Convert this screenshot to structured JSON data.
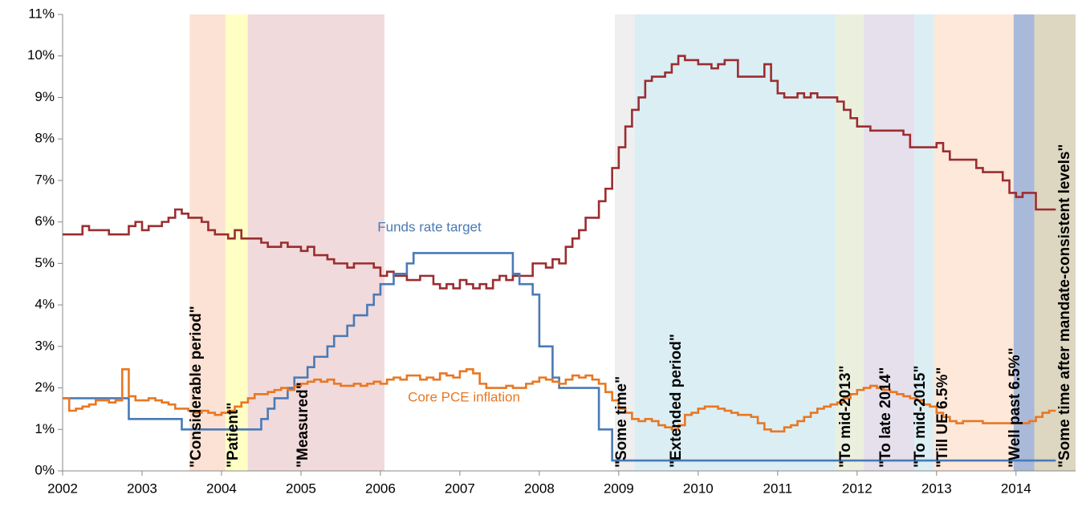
{
  "chart_data": {
    "type": "step-line",
    "xlim": [
      2002,
      2014.75
    ],
    "ylim": [
      0,
      11
    ],
    "xticks": [
      2002,
      2003,
      2004,
      2005,
      2006,
      2007,
      2008,
      2009,
      2010,
      2011,
      2012,
      2013,
      2014
    ],
    "yticks": [
      {
        "value": 0,
        "label": "0%"
      },
      {
        "value": 1,
        "label": "1%"
      },
      {
        "value": 2,
        "label": "2%"
      },
      {
        "value": 3,
        "label": "3%"
      },
      {
        "value": 4,
        "label": "4%"
      },
      {
        "value": 5,
        "label": "5%"
      },
      {
        "value": 6,
        "label": "6%"
      },
      {
        "value": 7,
        "label": "7%"
      },
      {
        "value": 8,
        "label": "8%"
      },
      {
        "value": 9,
        "label": "9%"
      },
      {
        "value": 10,
        "label": "10%"
      },
      {
        "value": 11,
        "label": "11%"
      }
    ],
    "grid": false,
    "shaded_periods": [
      {
        "label": "\"Considerable period\"",
        "start": 2003.6,
        "end": 2004.05,
        "color": "#fbe2d4"
      },
      {
        "label": "\"Patient\"",
        "start": 2004.05,
        "end": 2004.33,
        "color": "#ffffc4"
      },
      {
        "label": "\"Measured\"",
        "start": 2004.33,
        "end": 2006.05,
        "color": "#f1dadb"
      },
      {
        "label": "\"Some time\"",
        "start": 2008.95,
        "end": 2009.2,
        "color": "#efefef"
      },
      {
        "label": "\"Extended period\"",
        "start": 2009.2,
        "end": 2011.73,
        "color": "#dbeef4"
      },
      {
        "label": "\"To mid-2013\"",
        "start": 2011.73,
        "end": 2012.08,
        "color": "#ebf0de"
      },
      {
        "label": "\"To late 2014\"",
        "start": 2012.08,
        "end": 2012.72,
        "color": "#e5e0ec"
      },
      {
        "label": "\"To mid-2015\"",
        "start": 2012.72,
        "end": 2012.97,
        "color": "#dbeef4"
      },
      {
        "label": "\"Till UE 6.5%\"",
        "start": 2012.97,
        "end": 2013.97,
        "color": "#fde8da"
      },
      {
        "label": "\"Well past 6.5%\"",
        "start": 2013.97,
        "end": 2014.23,
        "color": "#a9b9d9"
      },
      {
        "label": "\"Some time after mandate-consistent levels\"",
        "start": 2014.23,
        "end": 2014.75,
        "color": "#ddd6c0"
      }
    ],
    "x": [
      2002,
      2002.083,
      2002.167,
      2002.25,
      2002.333,
      2002.417,
      2002.5,
      2002.583,
      2002.667,
      2002.75,
      2002.833,
      2002.917,
      2003,
      2003.083,
      2003.167,
      2003.25,
      2003.333,
      2003.417,
      2003.5,
      2003.583,
      2003.667,
      2003.75,
      2003.833,
      2003.917,
      2004,
      2004.083,
      2004.167,
      2004.25,
      2004.333,
      2004.417,
      2004.5,
      2004.583,
      2004.667,
      2004.75,
      2004.833,
      2004.917,
      2005,
      2005.083,
      2005.167,
      2005.25,
      2005.333,
      2005.417,
      2005.5,
      2005.583,
      2005.667,
      2005.75,
      2005.833,
      2005.917,
      2006,
      2006.083,
      2006.167,
      2006.25,
      2006.333,
      2006.417,
      2006.5,
      2006.583,
      2006.667,
      2006.75,
      2006.833,
      2006.917,
      2007,
      2007.083,
      2007.167,
      2007.25,
      2007.333,
      2007.417,
      2007.5,
      2007.583,
      2007.667,
      2007.75,
      2007.833,
      2007.917,
      2008,
      2008.083,
      2008.167,
      2008.25,
      2008.333,
      2008.417,
      2008.5,
      2008.583,
      2008.667,
      2008.75,
      2008.833,
      2008.917,
      2009,
      2009.083,
      2009.167,
      2009.25,
      2009.333,
      2009.417,
      2009.5,
      2009.583,
      2009.667,
      2009.75,
      2009.833,
      2009.917,
      2010,
      2010.083,
      2010.167,
      2010.25,
      2010.333,
      2010.417,
      2010.5,
      2010.583,
      2010.667,
      2010.75,
      2010.833,
      2010.917,
      2011,
      2011.083,
      2011.167,
      2011.25,
      2011.333,
      2011.417,
      2011.5,
      2011.583,
      2011.667,
      2011.75,
      2011.833,
      2011.917,
      2012,
      2012.083,
      2012.167,
      2012.25,
      2012.333,
      2012.417,
      2012.5,
      2012.583,
      2012.667,
      2012.75,
      2012.833,
      2012.917,
      2013,
      2013.083,
      2013.167,
      2013.25,
      2013.333,
      2013.417,
      2013.5,
      2013.583,
      2013.667,
      2013.75,
      2013.833,
      2013.917,
      2014,
      2014.083,
      2014.167,
      2014.25,
      2014.333,
      2014.417
    ],
    "series": [
      {
        "color": "#9b2d30",
        "values": [
          5.7,
          5.7,
          5.7,
          5.9,
          5.8,
          5.8,
          5.8,
          5.7,
          5.7,
          5.7,
          5.9,
          6.0,
          5.8,
          5.9,
          5.9,
          6.0,
          6.1,
          6.3,
          6.2,
          6.1,
          6.1,
          6.0,
          5.8,
          5.7,
          5.7,
          5.6,
          5.8,
          5.6,
          5.6,
          5.6,
          5.5,
          5.4,
          5.4,
          5.5,
          5.4,
          5.4,
          5.3,
          5.4,
          5.2,
          5.2,
          5.1,
          5.0,
          5.0,
          4.9,
          5.0,
          5.0,
          5.0,
          4.9,
          4.7,
          4.8,
          4.7,
          4.7,
          4.6,
          4.6,
          4.7,
          4.7,
          4.5,
          4.4,
          4.5,
          4.4,
          4.6,
          4.5,
          4.4,
          4.5,
          4.4,
          4.6,
          4.7,
          4.6,
          4.7,
          4.7,
          4.7,
          5.0,
          5.0,
          4.9,
          5.1,
          5.0,
          5.4,
          5.6,
          5.8,
          6.1,
          6.1,
          6.5,
          6.8,
          7.3,
          7.8,
          8.3,
          8.7,
          9.0,
          9.4,
          9.5,
          9.5,
          9.6,
          9.8,
          10.0,
          9.9,
          9.9,
          9.8,
          9.8,
          9.7,
          9.8,
          9.9,
          9.9,
          9.5,
          9.5,
          9.5,
          9.5,
          9.8,
          9.4,
          9.1,
          9.0,
          9.0,
          9.1,
          9.0,
          9.1,
          9.0,
          9.0,
          9.0,
          8.9,
          8.7,
          8.5,
          8.3,
          8.3,
          8.2,
          8.2,
          8.2,
          8.2,
          8.2,
          8.1,
          7.8,
          7.8,
          7.8,
          7.8,
          7.9,
          7.7,
          7.5,
          7.5,
          7.5,
          7.5,
          7.3,
          7.2,
          7.2,
          7.2,
          7.0,
          6.7,
          6.6,
          6.7,
          6.7,
          6.3,
          6.3,
          6.3
        ]
      },
      {
        "name": "Funds rate target",
        "color": "#4a7ab5",
        "values": [
          1.75,
          1.75,
          1.75,
          1.75,
          1.75,
          1.75,
          1.75,
          1.75,
          1.75,
          1.75,
          1.25,
          1.25,
          1.25,
          1.25,
          1.25,
          1.25,
          1.25,
          1.25,
          1.0,
          1.0,
          1.0,
          1.0,
          1.0,
          1.0,
          1.0,
          1.0,
          1.0,
          1.0,
          1.0,
          1.0,
          1.25,
          1.5,
          1.75,
          1.75,
          2.0,
          2.25,
          2.25,
          2.5,
          2.75,
          2.75,
          3.0,
          3.25,
          3.25,
          3.5,
          3.75,
          3.75,
          4.0,
          4.25,
          4.5,
          4.5,
          4.75,
          4.75,
          5.0,
          5.25,
          5.25,
          5.25,
          5.25,
          5.25,
          5.25,
          5.25,
          5.25,
          5.25,
          5.25,
          5.25,
          5.25,
          5.25,
          5.25,
          5.25,
          4.75,
          4.5,
          4.5,
          4.25,
          3.0,
          3.0,
          2.25,
          2.0,
          2.0,
          2.0,
          2.0,
          2.0,
          2.0,
          1.0,
          1.0,
          0.25,
          0.25,
          0.25,
          0.25,
          0.25,
          0.25,
          0.25,
          0.25,
          0.25,
          0.25,
          0.25,
          0.25,
          0.25,
          0.25,
          0.25,
          0.25,
          0.25,
          0.25,
          0.25,
          0.25,
          0.25,
          0.25,
          0.25,
          0.25,
          0.25,
          0.25,
          0.25,
          0.25,
          0.25,
          0.25,
          0.25,
          0.25,
          0.25,
          0.25,
          0.25,
          0.25,
          0.25,
          0.25,
          0.25,
          0.25,
          0.25,
          0.25,
          0.25,
          0.25,
          0.25,
          0.25,
          0.25,
          0.25,
          0.25,
          0.25,
          0.25,
          0.25,
          0.25,
          0.25,
          0.25,
          0.25,
          0.25,
          0.25,
          0.25,
          0.25,
          0.25,
          0.25,
          0.25,
          0.25,
          0.25,
          0.25,
          0.25
        ]
      },
      {
        "name": "Core PCE inflation",
        "color": "#e87722",
        "values": [
          1.75,
          1.45,
          1.5,
          1.55,
          1.6,
          1.7,
          1.7,
          1.65,
          1.7,
          2.45,
          1.8,
          1.7,
          1.7,
          1.75,
          1.7,
          1.65,
          1.6,
          1.5,
          1.5,
          1.45,
          1.4,
          1.45,
          1.4,
          1.35,
          1.4,
          1.45,
          1.55,
          1.65,
          1.75,
          1.85,
          1.85,
          1.9,
          1.95,
          2.0,
          1.95,
          2.05,
          2.1,
          2.15,
          2.2,
          2.15,
          2.2,
          2.1,
          2.05,
          2.05,
          2.1,
          2.05,
          2.1,
          2.15,
          2.1,
          2.2,
          2.25,
          2.2,
          2.3,
          2.3,
          2.2,
          2.25,
          2.2,
          2.35,
          2.3,
          2.25,
          2.4,
          2.45,
          2.35,
          2.1,
          2.0,
          2.0,
          2.0,
          2.05,
          2.0,
          2.0,
          2.1,
          2.15,
          2.25,
          2.2,
          2.15,
          2.1,
          2.2,
          2.3,
          2.25,
          2.3,
          2.2,
          2.1,
          1.9,
          1.7,
          1.5,
          1.4,
          1.25,
          1.2,
          1.25,
          1.2,
          1.1,
          1.05,
          1.0,
          1.1,
          1.35,
          1.4,
          1.5,
          1.55,
          1.55,
          1.5,
          1.45,
          1.4,
          1.35,
          1.35,
          1.3,
          1.15,
          1.0,
          0.95,
          0.95,
          1.05,
          1.1,
          1.2,
          1.3,
          1.4,
          1.5,
          1.55,
          1.6,
          1.65,
          1.75,
          1.85,
          1.95,
          2.0,
          2.05,
          2.0,
          1.95,
          1.9,
          1.85,
          1.8,
          1.75,
          1.7,
          1.6,
          1.55,
          1.4,
          1.3,
          1.2,
          1.15,
          1.2,
          1.2,
          1.2,
          1.15,
          1.15,
          1.15,
          1.15,
          1.15,
          1.15,
          1.15,
          1.2,
          1.3,
          1.4,
          1.45
        ]
      }
    ]
  }
}
